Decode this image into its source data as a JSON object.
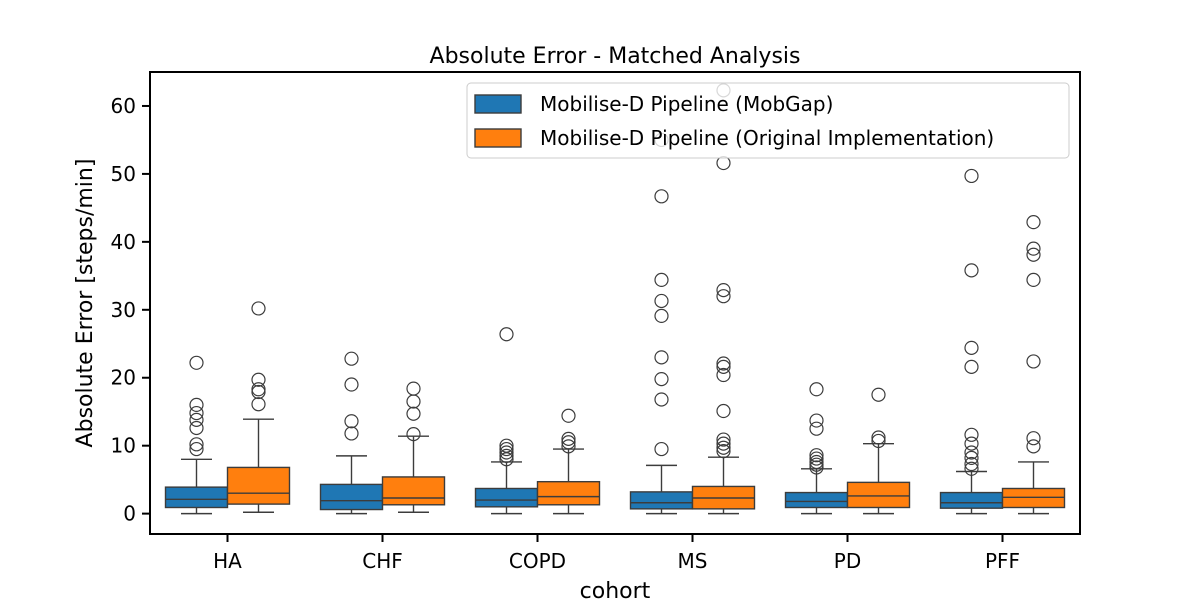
{
  "chart_data": {
    "type": "box",
    "title": "Absolute Error - Matched Analysis",
    "xlabel": "cohort",
    "ylabel": "Absolute Error [steps/min]",
    "categories": [
      "HA",
      "CHF",
      "COPD",
      "MS",
      "PD",
      "PFF"
    ],
    "ylim": [
      -3,
      65
    ],
    "yticks": [
      0,
      10,
      20,
      30,
      40,
      50,
      60
    ],
    "legend_position": "top-right",
    "series": [
      {
        "name": "Mobilise-D Pipeline (MobGap)",
        "color": "#1f77b4",
        "boxes": [
          {
            "whisker_low": 0,
            "q1": 0.9,
            "median": 2.1,
            "q3": 3.9,
            "whisker_high": 8.0,
            "outliers": [
              9.5,
              10.2,
              12.6,
              13.8,
              14.8,
              16.0,
              22.2
            ]
          },
          {
            "whisker_low": 0,
            "q1": 0.6,
            "median": 1.9,
            "q3": 4.3,
            "whisker_high": 8.5,
            "outliers": [
              11.8,
              13.6,
              19.0,
              22.8
            ]
          },
          {
            "whisker_low": 0,
            "q1": 1.0,
            "median": 2.0,
            "q3": 3.7,
            "whisker_high": 7.6,
            "outliers": [
              8.0,
              8.5,
              9.0,
              9.5,
              10.0,
              26.4
            ]
          },
          {
            "whisker_low": 0,
            "q1": 0.7,
            "median": 1.6,
            "q3": 3.2,
            "whisker_high": 7.1,
            "outliers": [
              9.5,
              16.8,
              19.8,
              23.0,
              29.1,
              31.3,
              34.4,
              46.7,
              55.0
            ]
          },
          {
            "whisker_low": 0,
            "q1": 0.9,
            "median": 1.8,
            "q3": 3.1,
            "whisker_high": 6.6,
            "outliers": [
              6.8,
              7.2,
              7.6,
              8.1,
              8.6,
              12.5,
              13.7,
              18.3
            ]
          },
          {
            "whisker_low": 0,
            "q1": 0.8,
            "median": 1.6,
            "q3": 3.1,
            "whisker_high": 6.2,
            "outliers": [
              6.6,
              7.3,
              8.2,
              9.0,
              10.3,
              11.6,
              21.6,
              24.4,
              35.8,
              49.7
            ]
          }
        ]
      },
      {
        "name": "Mobilise-D Pipeline (Original Implementation)",
        "color": "#ff7f0e",
        "boxes": [
          {
            "whisker_low": 0.2,
            "q1": 1.4,
            "median": 3.0,
            "q3": 6.8,
            "whisker_high": 13.9,
            "outliers": [
              16.1,
              17.9,
              18.3,
              19.7,
              30.2
            ]
          },
          {
            "whisker_low": 0.2,
            "q1": 1.3,
            "median": 2.3,
            "q3": 5.4,
            "whisker_high": 11.4,
            "outliers": [
              11.7,
              14.7,
              16.5,
              18.4
            ]
          },
          {
            "whisker_low": 0,
            "q1": 1.3,
            "median": 2.5,
            "q3": 4.7,
            "whisker_high": 9.5,
            "outliers": [
              9.9,
              10.5,
              11.0,
              14.4
            ]
          },
          {
            "whisker_low": 0,
            "q1": 0.7,
            "median": 2.3,
            "q3": 4.0,
            "whisker_high": 8.3,
            "outliers": [
              9.2,
              9.7,
              10.3,
              10.9,
              15.1,
              20.4,
              21.6,
              22.1,
              32.0,
              32.9,
              51.6,
              62.3
            ]
          },
          {
            "whisker_low": 0,
            "q1": 0.9,
            "median": 2.6,
            "q3": 4.6,
            "whisker_high": 10.3,
            "outliers": [
              10.7,
              11.2,
              17.5
            ]
          },
          {
            "whisker_low": 0,
            "q1": 0.9,
            "median": 2.4,
            "q3": 3.7,
            "whisker_high": 7.6,
            "outliers": [
              9.9,
              11.1,
              22.4,
              34.4,
              38.1,
              39.0,
              42.9
            ]
          }
        ]
      }
    ]
  }
}
